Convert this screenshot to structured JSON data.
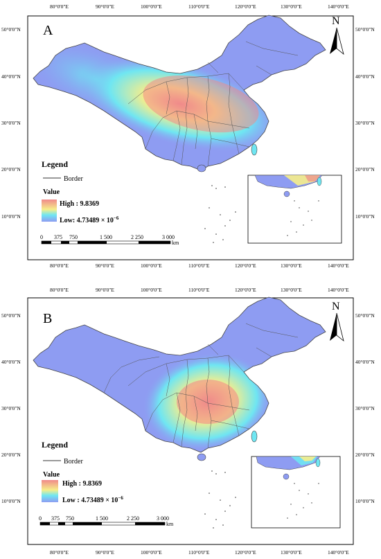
{
  "panels": [
    {
      "id": "A",
      "letter": "A",
      "legend": {
        "title": "Legend",
        "border_label": "Border",
        "value_label": "Value",
        "high_label": "High : 9.8369",
        "low_label": "Low: 4.73489 × 10",
        "low_exponent": "−6"
      },
      "north_label": "N",
      "scale": {
        "ticks": [
          "0",
          "375",
          "750",
          "1 500",
          "2 250",
          "3 000"
        ],
        "unit": "km"
      },
      "top_lon": [
        "80°0'0\"E",
        "90°0'0\"E",
        "100°0'0\"E",
        "110°0'0\"E",
        "120°0'0\"E",
        "130°0'0\"E",
        "140°0'0\"E"
      ],
      "bottom_lon": [
        "80°0'0\"E",
        "90°0'0\"E",
        "100°0'0\"E",
        "110°0'0\"E",
        "120°0'0\"E",
        "130°0'0\"E",
        "140°0'0\"E"
      ],
      "left_lat": [
        "50°0'0\"N",
        "40°0'0\"N",
        "30°0'0\"N",
        "20°0'0\"N",
        "10°0'0\"N"
      ],
      "right_lat": [
        "50°0'0\"N",
        "40°0'0\"N",
        "30°0'0\"N",
        "20°0'0\"N",
        "10°0'0\"N"
      ]
    },
    {
      "id": "B",
      "letter": "B",
      "legend": {
        "title": "Legend",
        "border_label": "Border",
        "value_label": "Value",
        "high_label": "High : 9.8369",
        "low_label": "Low : 4.73489 × 10",
        "low_exponent": "−6"
      },
      "north_label": "N",
      "scale": {
        "ticks": [
          "0",
          "375",
          "750",
          "1 500",
          "2 250",
          "3 000"
        ],
        "unit": "km"
      },
      "top_lon": [
        "80°0'0\"E",
        "90°0'0\"E",
        "100°0'0\"E",
        "110°0'0\"E",
        "120°0'0\"E",
        "130°0'0\"E",
        "140°0'0\"E"
      ],
      "bottom_lon": [
        "80°0'0\"E",
        "90°0'0\"E",
        "100°0'0\"E",
        "110°0'0\"E",
        "120°0'0\"E",
        "130°0'0\"E",
        "140°0'0\"E"
      ],
      "left_lat": [
        "50°0'0\"N",
        "40°0'0\"N",
        "30°0'0\"N",
        "20°0'0\"N",
        "10°0'0\"N"
      ],
      "right_lat": [
        "50°0'0\"N",
        "40°0'0\"N",
        "30°0'0\"N",
        "20°0'0\"N",
        "10°0'0\"N"
      ]
    }
  ],
  "colors": {
    "low": "#8e9cf2",
    "mid_cyan": "#6fe6f2",
    "mid_yellow": "#f6ee8a",
    "high": "#f08a8a",
    "border": "#333333"
  }
}
